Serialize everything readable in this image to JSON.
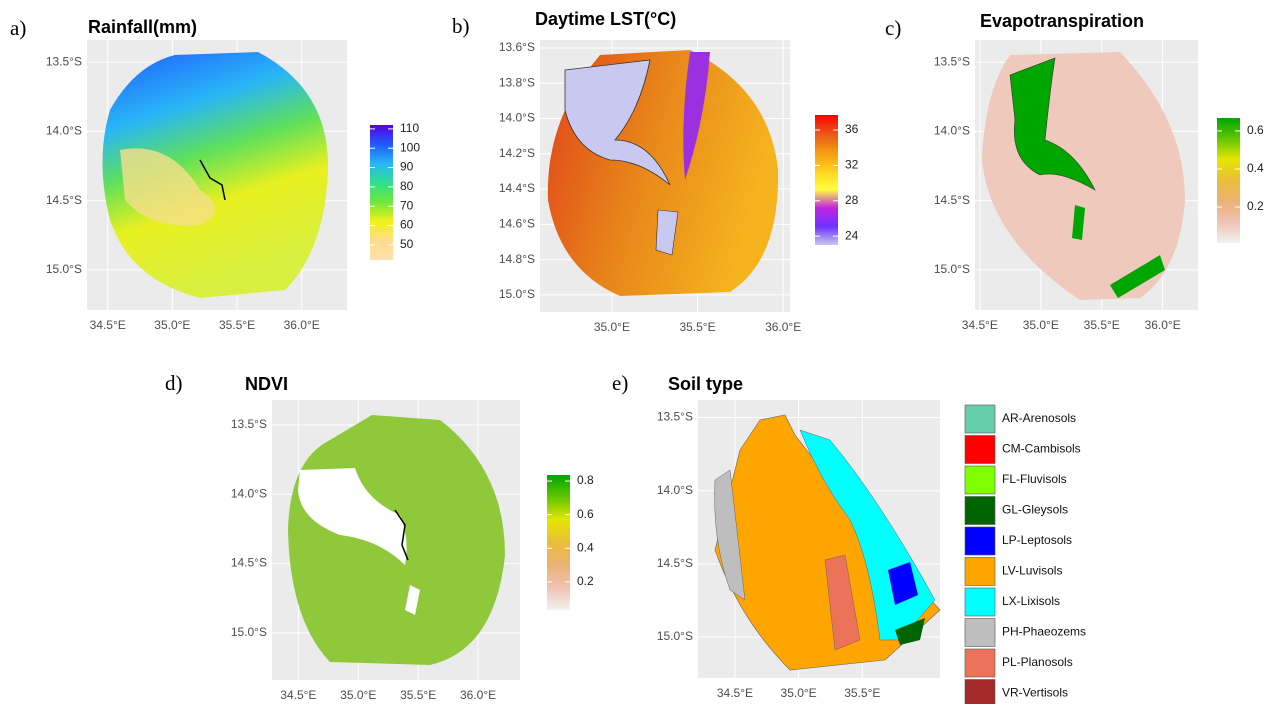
{
  "panels": [
    {
      "letter": "a)",
      "title": "Rainfall(mm)",
      "xlim": [
        34.34,
        36.35
      ],
      "ylim": [
        -15.29,
        -13.34
      ],
      "xticks": [
        {
          "value": 34.5,
          "label": "34.5°E"
        },
        {
          "value": 35.0,
          "label": "35.0°E"
        },
        {
          "value": 35.5,
          "label": "35.5°E"
        },
        {
          "value": 36.0,
          "label": "36.0°E"
        }
      ],
      "yticks": [
        {
          "value": -13.5,
          "label": "13.5°S"
        },
        {
          "value": -14.0,
          "label": "14.0°S"
        },
        {
          "value": -14.5,
          "label": "14.5°S"
        },
        {
          "value": -15.0,
          "label": "15.0°S"
        }
      ],
      "colorbar": {
        "lim": [
          42.2,
          112
        ],
        "ticks": [
          50,
          60,
          70,
          80,
          90,
          100,
          110
        ],
        "colors": [
          "#5a00e0",
          "#1f5cff",
          "#29b6f6",
          "#2ee08a",
          "#6fe83a",
          "#f2f21a",
          "#ffdc8c",
          "#ffe0b0"
        ]
      }
    },
    {
      "letter": "b)",
      "title": "Daytime LST(°C)",
      "xlim": [
        34.58,
        36.04
      ],
      "ylim": [
        -15.097,
        -13.555
      ],
      "xticks": [
        {
          "value": 35.0,
          "label": "35.0°E"
        },
        {
          "value": 35.5,
          "label": "35.5°E"
        },
        {
          "value": 36.0,
          "label": "36.0°E"
        }
      ],
      "yticks": [
        {
          "value": -13.6,
          "label": "13.6°S"
        },
        {
          "value": -13.8,
          "label": "13.8°S"
        },
        {
          "value": -14.0,
          "label": "14.0°S"
        },
        {
          "value": -14.2,
          "label": "14.2°S"
        },
        {
          "value": -14.4,
          "label": "14.4°S"
        },
        {
          "value": -14.6,
          "label": "14.6°S"
        },
        {
          "value": -14.8,
          "label": "14.8°S"
        },
        {
          "value": -15.0,
          "label": "15.0°S"
        }
      ],
      "colorbar": {
        "lim": [
          23.0,
          37.7
        ],
        "ticks": [
          24,
          28,
          32,
          36
        ],
        "colors": [
          "#ff0000",
          "#e8561a",
          "#f59a10",
          "#ffd21e",
          "#ffff3c",
          "#c026e0",
          "#7030ff",
          "#c8c8f0"
        ]
      }
    },
    {
      "letter": "c)",
      "title": "Evapotranspiration",
      "xlim": [
        34.46,
        36.29
      ],
      "ylim": [
        -15.29,
        -13.34
      ],
      "xticks": [
        {
          "value": 34.5,
          "label": "34.5°E"
        },
        {
          "value": 35.0,
          "label": "35.0°E"
        },
        {
          "value": 35.5,
          "label": "35.5°E"
        },
        {
          "value": 36.0,
          "label": "36.0°E"
        }
      ],
      "yticks": [
        {
          "value": -13.5,
          "label": "13.5°S"
        },
        {
          "value": -14.0,
          "label": "14.0°S"
        },
        {
          "value": -14.5,
          "label": "14.5°S"
        },
        {
          "value": -15.0,
          "label": "15.0°S"
        }
      ],
      "colorbar": {
        "lim": [
          0.011,
          0.668
        ],
        "ticks": [
          0.2,
          0.4,
          0.6
        ],
        "colors": [
          "#00a600",
          "#63c600",
          "#e6e600",
          "#e9bd3a",
          "#ecb176",
          "#efc2b3",
          "#f2f2f2"
        ]
      }
    },
    {
      "letter": "d)",
      "title": "NDVI",
      "xlim": [
        34.28,
        36.35
      ],
      "ylim": [
        -15.34,
        -13.32
      ],
      "xticks": [
        {
          "value": 34.5,
          "label": "34.5°E"
        },
        {
          "value": 35.0,
          "label": "35.0°E"
        },
        {
          "value": 35.5,
          "label": "35.5°E"
        },
        {
          "value": 36.0,
          "label": "36.0°E"
        }
      ],
      "yticks": [
        {
          "value": -13.5,
          "label": "13.5°S"
        },
        {
          "value": -14.0,
          "label": "14.0°S"
        },
        {
          "value": -14.5,
          "label": "14.5°S"
        },
        {
          "value": -15.0,
          "label": "15.0°S"
        }
      ],
      "colorbar": {
        "lim": [
          0.033,
          0.836
        ],
        "ticks": [
          0.2,
          0.4,
          0.6,
          0.8
        ],
        "colors": [
          "#00a600",
          "#63c600",
          "#e6e600",
          "#e9bd3a",
          "#ecb176",
          "#efc2b3",
          "#f2f2f2"
        ]
      }
    },
    {
      "letter": "e)",
      "title": "Soil type",
      "xlim": [
        34.21,
        36.11
      ],
      "ylim": [
        -15.28,
        -13.38
      ],
      "xticks": [
        {
          "value": 34.5,
          "label": "34.5°E"
        },
        {
          "value": 35.0,
          "label": "35.0°E"
        },
        {
          "value": 35.5,
          "label": "35.5°E"
        }
      ],
      "yticks": [
        {
          "value": -13.5,
          "label": "13.5°S"
        },
        {
          "value": -14.0,
          "label": "14.0°S"
        },
        {
          "value": -14.5,
          "label": "14.5°S"
        },
        {
          "value": -15.0,
          "label": "15.0°S"
        }
      ],
      "legend": [
        {
          "name": "AR-Arenosols",
          "color": "#66cdaa"
        },
        {
          "name": "CM-Cambisols",
          "color": "#ff0000"
        },
        {
          "name": "FL-Fluvisols",
          "color": "#7fff00"
        },
        {
          "name": "GL-Gleysols",
          "color": "#006400"
        },
        {
          "name": "LP-Leptosols",
          "color": "#0000ff"
        },
        {
          "name": "LV-Luvisols",
          "color": "#ffa500"
        },
        {
          "name": "LX-Lixisols",
          "color": "#00ffff"
        },
        {
          "name": "PH-Phaeozems",
          "color": "#bebebe"
        },
        {
          "name": "PL-Planosols",
          "color": "#ec735a"
        },
        {
          "name": "VR-Vertisols",
          "color": "#a52a2a"
        }
      ]
    }
  ]
}
